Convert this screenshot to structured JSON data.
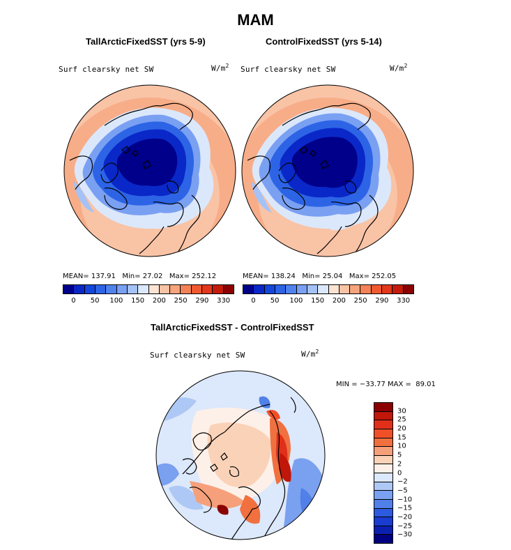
{
  "figure": {
    "title": "MAM",
    "panel_left": {
      "title": "TallArcticFixedSST (yrs 5-9)",
      "field_label": "Surf clearsky net SW",
      "units": "W/m",
      "units_exp": "2",
      "stats": {
        "mean_label": "MEAN=",
        "mean": "137.91",
        "min_label": "Min=",
        "min": "27.02",
        "max_label": "Max=",
        "max": "252.12"
      }
    },
    "panel_right": {
      "title": "ControlFixedSST (yrs 5-14)",
      "field_label": "Surf clearsky net SW",
      "units": "W/m",
      "units_exp": "2",
      "stats": {
        "mean_label": "MEAN=",
        "mean": "138.24",
        "min_label": "Min=",
        "min": "25.04",
        "max_label": "Max=",
        "max": "252.05"
      }
    },
    "panel_diff": {
      "title": "TallArcticFixedSST - ControlFixedSST",
      "field_label": "Surf clearsky net SW",
      "units": "W/m",
      "units_exp": "2",
      "minmax": {
        "min_label": "MIN =",
        "min": "−33.77",
        "max_label": "MAX =",
        "max": "89.01"
      }
    }
  },
  "colorbar_abs": {
    "colors": [
      "#00008b",
      "#0a28c8",
      "#1446dc",
      "#2d64e6",
      "#5082ee",
      "#7aa0f2",
      "#a5c2f7",
      "#dbe8fb",
      "#fde3d2",
      "#f9c3a6",
      "#f6a47c",
      "#f38256",
      "#ef5a30",
      "#e3381b",
      "#c41b0c",
      "#8b0000"
    ],
    "tick_labels": [
      "0",
      "50",
      "100",
      "150",
      "200",
      "250",
      "290",
      "330"
    ]
  },
  "colorbar_diff": {
    "colors": [
      "#8b0000",
      "#c0170a",
      "#e0301a",
      "#f05028",
      "#f07040",
      "#f5a07a",
      "#fad2b8",
      "#fdf0e8",
      "#dce8fb",
      "#aec8f5",
      "#7aa0f0",
      "#5080e8",
      "#2e5ae0",
      "#1a3cd0",
      "#0c20b0",
      "#000080"
    ],
    "tick_labels": [
      "30",
      "25",
      "20",
      "15",
      "10",
      "5",
      "2",
      "0",
      "−2",
      "−5",
      "−10",
      "−15",
      "−20",
      "−25",
      "−30"
    ]
  }
}
